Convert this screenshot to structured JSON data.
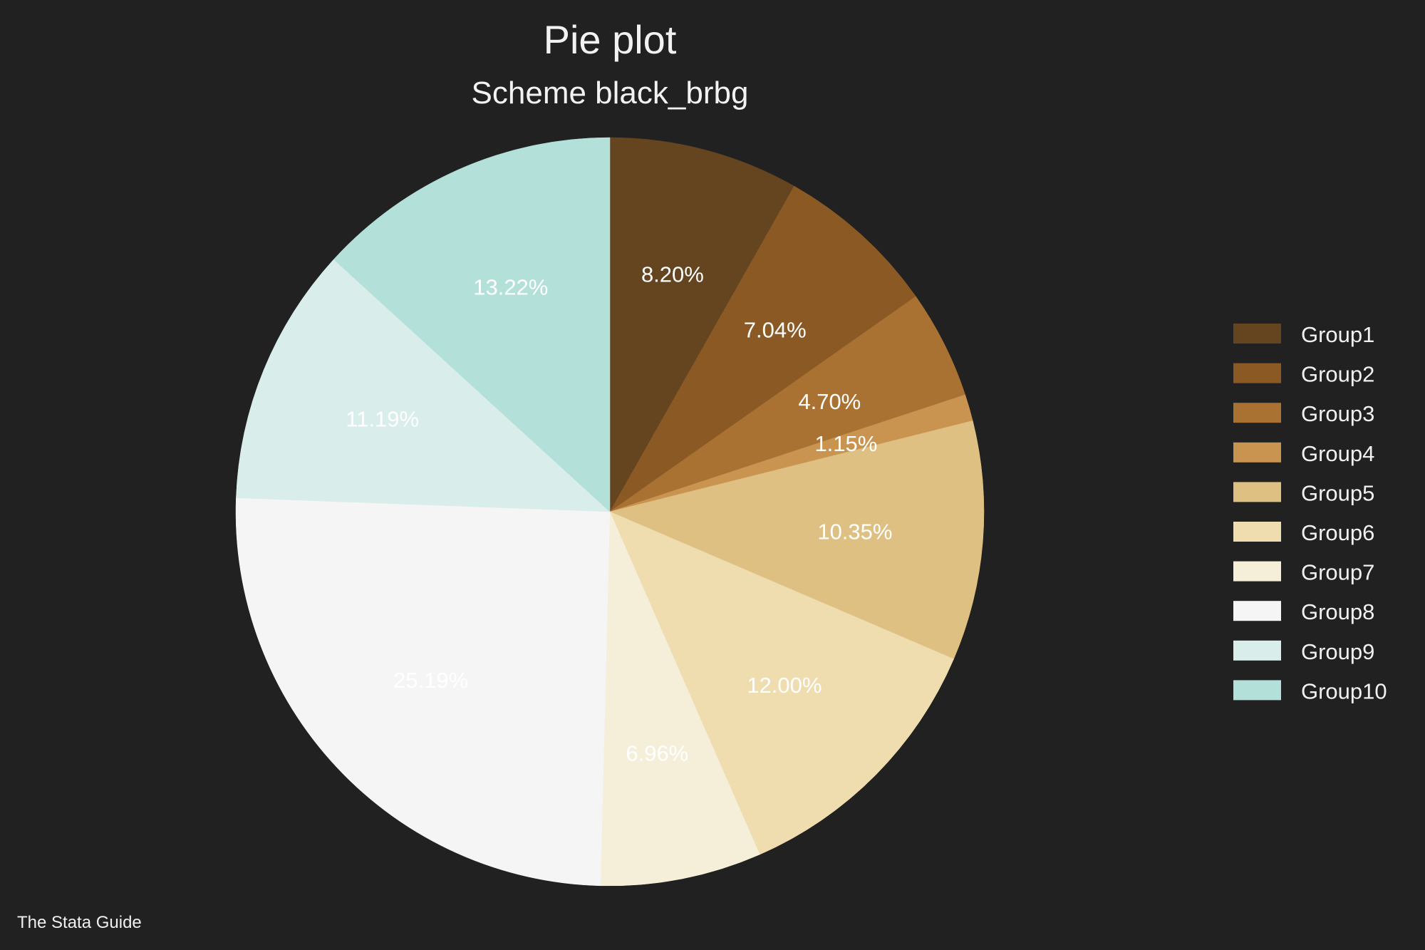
{
  "chart_data": {
    "type": "pie",
    "title": "Pie plot",
    "subtitle": "Scheme black_brbg",
    "note": "The Stata Guide",
    "legend_position": "right",
    "start_angle_deg": 0,
    "direction": "clockwise",
    "background": "#212121",
    "slices": [
      {
        "name": "Group1",
        "value": 8.2,
        "label": "8.20%",
        "color": "#654520"
      },
      {
        "name": "Group2",
        "value": 7.04,
        "label": "7.04%",
        "color": "#8b5a24"
      },
      {
        "name": "Group3",
        "value": 4.7,
        "label": "4.70%",
        "color": "#a97232"
      },
      {
        "name": "Group4",
        "value": 1.15,
        "label": "1.15%",
        "color": "#c89450"
      },
      {
        "name": "Group5",
        "value": 10.35,
        "label": "10.35%",
        "color": "#dfc083"
      },
      {
        "name": "Group6",
        "value": 12.0,
        "label": "12.00%",
        "color": "#efddaf"
      },
      {
        "name": "Group7",
        "value": 6.96,
        "label": "6.96%",
        "color": "#f5eed9"
      },
      {
        "name": "Group8",
        "value": 25.19,
        "label": "25.19%",
        "color": "#f5f5f5"
      },
      {
        "name": "Group9",
        "value": 11.19,
        "label": "11.19%",
        "color": "#d9eeea"
      },
      {
        "name": "Group10",
        "value": 13.22,
        "label": "13.22%",
        "color": "#b3e1da"
      }
    ]
  }
}
